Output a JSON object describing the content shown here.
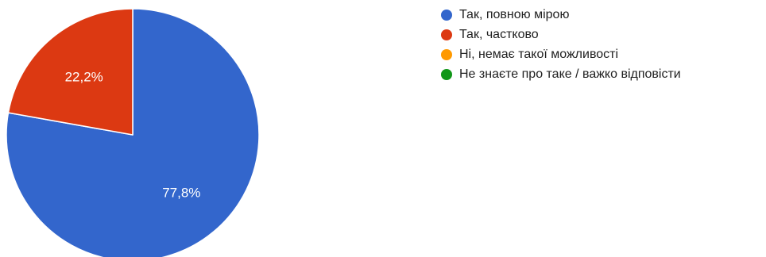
{
  "chart_data": {
    "type": "pie",
    "categories": [
      "Так, повною мірою",
      "Так, частково",
      "Ні, немає такої можливості",
      "Не знаєте про таке / важко відповісти"
    ],
    "values": [
      77.8,
      22.2,
      0,
      0
    ],
    "value_labels": [
      "77,8%",
      "22,2%",
      "",
      ""
    ],
    "colors": [
      "#3366cc",
      "#dc3912",
      "#ff9900",
      "#109618"
    ],
    "legend_position": "right",
    "start_angle": "top, clockwise"
  }
}
